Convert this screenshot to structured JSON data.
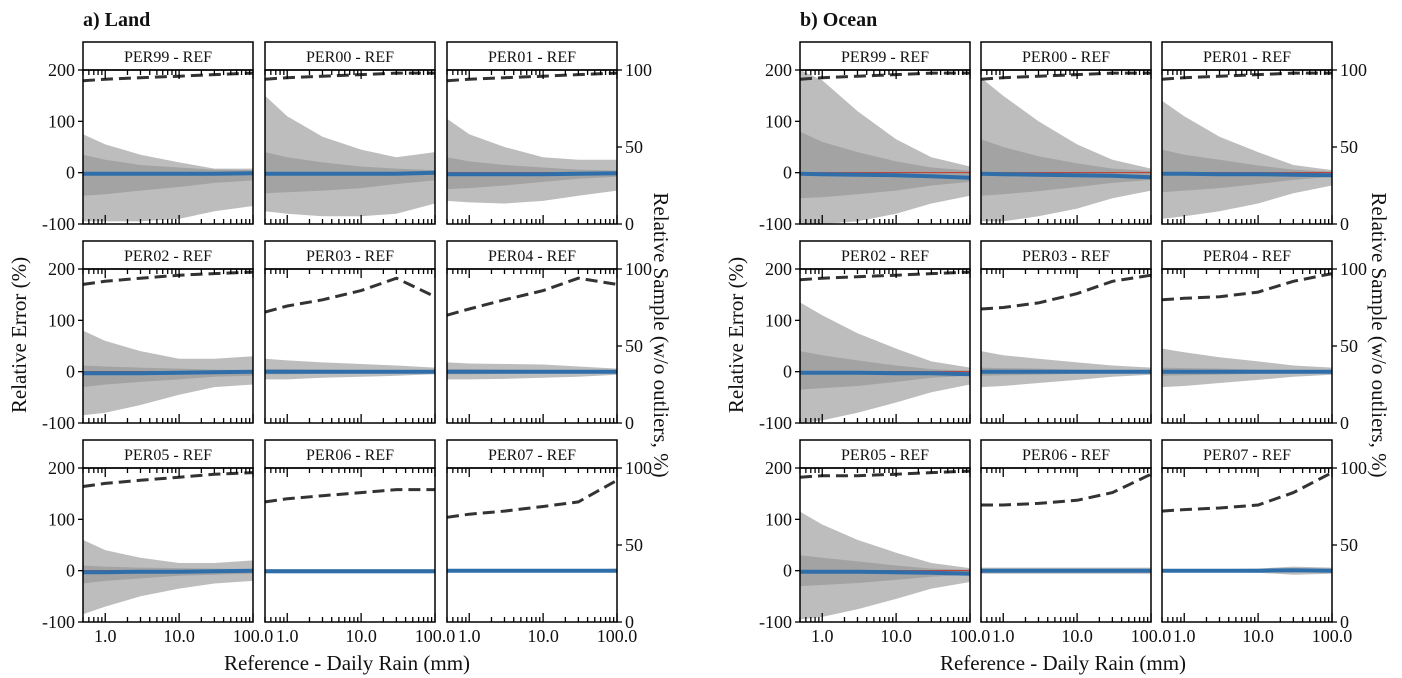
{
  "figure": {
    "xlabel": "Reference - Daily Rain (mm)",
    "ylabel_left": "Relative Error (%)",
    "ylabel_right": "Relative Sample (w/o outliers, %)",
    "colors": {
      "outer_band": "#bdbdbd",
      "inner_band": "#a3a3a3",
      "median_bar": "#2f6ea8",
      "mean_line": "#c0392b",
      "dashed_line": "#333333",
      "frame": "#000000"
    }
  },
  "chart_data": [
    {
      "type": "area",
      "title": "a) Land",
      "xscale": "log",
      "xlim": [
        0.5,
        100
      ],
      "ylim": [
        -100,
        200
      ],
      "y2lim": [
        0,
        100
      ],
      "xticks": [
        "1.0",
        "10.0",
        "100.0"
      ],
      "yticks": [
        "200",
        "100",
        "0",
        "-100"
      ],
      "y2ticks": [
        "100",
        "50",
        "0"
      ],
      "x": [
        0.5,
        1,
        3,
        10,
        30,
        100
      ],
      "panels": [
        {
          "title": "PER99 - REF",
          "outer_upper": [
            75,
            55,
            35,
            20,
            8,
            8
          ],
          "outer_lower": [
            -95,
            -95,
            -95,
            -90,
            -75,
            -65
          ],
          "inner_upper": [
            35,
            25,
            15,
            10,
            6,
            5
          ],
          "inner_lower": [
            -45,
            -42,
            -35,
            -28,
            -20,
            -15
          ],
          "median": [
            -2,
            -2,
            -2,
            -2,
            -2,
            -1
          ],
          "sample": [
            93,
            94,
            95,
            96,
            97,
            98
          ]
        },
        {
          "title": "PER00 - REF",
          "outer_upper": [
            150,
            110,
            70,
            45,
            30,
            40
          ],
          "outer_lower": [
            -75,
            -80,
            -85,
            -85,
            -80,
            -60
          ],
          "inner_upper": [
            40,
            30,
            20,
            12,
            8,
            5
          ],
          "inner_lower": [
            -40,
            -38,
            -35,
            -30,
            -22,
            -15
          ],
          "median": [
            -2,
            -2,
            -2,
            -2,
            -2,
            0
          ],
          "sample": [
            94,
            95,
            96,
            97,
            98,
            98
          ]
        },
        {
          "title": "PER01 - REF",
          "outer_upper": [
            105,
            75,
            50,
            30,
            25,
            25
          ],
          "outer_lower": [
            -55,
            -58,
            -60,
            -55,
            -45,
            -35
          ],
          "inner_upper": [
            30,
            22,
            15,
            10,
            6,
            4
          ],
          "inner_lower": [
            -32,
            -30,
            -25,
            -18,
            -12,
            -8
          ],
          "median": [
            -3,
            -3,
            -3,
            -3,
            -2,
            -1
          ],
          "sample": [
            93,
            94,
            95,
            96,
            97,
            98
          ]
        },
        {
          "title": "PER02 - REF",
          "outer_upper": [
            80,
            60,
            40,
            25,
            25,
            30
          ],
          "outer_lower": [
            -85,
            -80,
            -65,
            -45,
            -30,
            -25
          ],
          "inner_upper": [
            12,
            10,
            8,
            6,
            4,
            3
          ],
          "inner_lower": [
            -30,
            -25,
            -20,
            -15,
            -10,
            -8
          ],
          "median": [
            -3,
            -3,
            -3,
            -2,
            -1,
            0
          ],
          "sample": [
            90,
            92,
            94,
            96,
            97,
            98
          ]
        },
        {
          "title": "PER03 - REF",
          "outer_upper": [
            25,
            22,
            18,
            15,
            12,
            8
          ],
          "outer_lower": [
            -15,
            -15,
            -12,
            -10,
            -8,
            -5
          ],
          "inner_upper": [
            5,
            5,
            4,
            3,
            2,
            2
          ],
          "inner_lower": [
            -5,
            -5,
            -4,
            -3,
            -2,
            -2
          ],
          "median": [
            0,
            0,
            0,
            0,
            0,
            0
          ],
          "sample": [
            72,
            76,
            80,
            86,
            94,
            82
          ]
        },
        {
          "title": "PER04 - REF",
          "outer_upper": [
            18,
            16,
            15,
            14,
            10,
            6
          ],
          "outer_lower": [
            -15,
            -15,
            -14,
            -12,
            -10,
            -6
          ],
          "inner_upper": [
            5,
            5,
            4,
            3,
            3,
            2
          ],
          "inner_lower": [
            -5,
            -5,
            -4,
            -3,
            -3,
            -2
          ],
          "median": [
            0,
            0,
            0,
            0,
            0,
            0
          ],
          "sample": [
            70,
            74,
            80,
            86,
            94,
            90
          ]
        },
        {
          "title": "PER05 - REF",
          "outer_upper": [
            60,
            40,
            25,
            15,
            15,
            20
          ],
          "outer_lower": [
            -85,
            -70,
            -50,
            -35,
            -25,
            -20
          ],
          "inner_upper": [
            10,
            8,
            6,
            5,
            4,
            3
          ],
          "inner_lower": [
            -25,
            -20,
            -15,
            -10,
            -8,
            -6
          ],
          "median": [
            -3,
            -3,
            -2,
            -2,
            -1,
            0
          ],
          "sample": [
            88,
            90,
            92,
            94,
            96,
            97
          ]
        },
        {
          "title": "PER06 - REF",
          "outer_upper": [
            3,
            3,
            3,
            3,
            3,
            3
          ],
          "outer_lower": [
            -5,
            -5,
            -5,
            -5,
            -5,
            -5
          ],
          "inner_upper": [
            1,
            1,
            1,
            1,
            1,
            1
          ],
          "inner_lower": [
            -2,
            -2,
            -2,
            -2,
            -2,
            -2
          ],
          "median": [
            -1,
            -1,
            -1,
            -1,
            -1,
            -1
          ],
          "sample": [
            78,
            80,
            82,
            84,
            86,
            86
          ]
        },
        {
          "title": "PER07 - REF",
          "outer_upper": [
            1,
            1,
            1,
            1,
            2,
            4
          ],
          "outer_lower": [
            -1,
            -1,
            -1,
            -1,
            -2,
            -3
          ],
          "inner_upper": [
            0.5,
            0.5,
            0.5,
            0.5,
            1,
            1
          ],
          "inner_lower": [
            -0.5,
            -0.5,
            -0.5,
            -0.5,
            -1,
            -1
          ],
          "median": [
            0,
            0,
            0,
            0,
            0,
            0
          ],
          "sample": [
            68,
            70,
            72,
            75,
            78,
            92
          ]
        }
      ]
    },
    {
      "type": "area",
      "title": "b) Ocean",
      "xscale": "log",
      "xlim": [
        0.5,
        100
      ],
      "ylim": [
        -100,
        200
      ],
      "y2lim": [
        0,
        100
      ],
      "xticks": [
        "1.0",
        "10.0",
        "100.0"
      ],
      "yticks": [
        "200",
        "100",
        "0",
        "-100"
      ],
      "y2ticks": [
        "100",
        "50",
        "0"
      ],
      "x": [
        0.5,
        1,
        3,
        10,
        30,
        100
      ],
      "panels": [
        {
          "title": "PER99 - REF",
          "outer_upper": [
            220,
            180,
            120,
            65,
            30,
            12
          ],
          "outer_lower": [
            -100,
            -100,
            -95,
            -80,
            -60,
            -45
          ],
          "inner_upper": [
            80,
            60,
            40,
            22,
            10,
            4
          ],
          "inner_lower": [
            -50,
            -48,
            -42,
            -35,
            -25,
            -18
          ],
          "median": [
            -2,
            -3,
            -4,
            -5,
            -7,
            -10
          ],
          "sample": [
            94,
            95,
            96,
            97,
            98,
            98
          ]
        },
        {
          "title": "PER00 - REF",
          "outer_upper": [
            185,
            150,
            100,
            55,
            25,
            8
          ],
          "outer_lower": [
            -95,
            -95,
            -85,
            -70,
            -50,
            -35
          ],
          "inner_upper": [
            65,
            50,
            32,
            18,
            8,
            3
          ],
          "inner_lower": [
            -45,
            -42,
            -36,
            -28,
            -20,
            -14
          ],
          "median": [
            -2,
            -3,
            -4,
            -5,
            -6,
            -9
          ],
          "sample": [
            94,
            95,
            96,
            97,
            98,
            98
          ]
        },
        {
          "title": "PER01 - REF",
          "outer_upper": [
            140,
            110,
            70,
            40,
            15,
            5
          ],
          "outer_lower": [
            -90,
            -85,
            -75,
            -60,
            -40,
            -25
          ],
          "inner_upper": [
            45,
            35,
            25,
            14,
            6,
            2
          ],
          "inner_lower": [
            -38,
            -35,
            -30,
            -22,
            -14,
            -8
          ],
          "median": [
            -2,
            -2,
            -3,
            -3,
            -4,
            -5
          ],
          "sample": [
            94,
            95,
            96,
            97,
            98,
            98
          ]
        },
        {
          "title": "PER02 - REF",
          "outer_upper": [
            135,
            110,
            75,
            45,
            20,
            8
          ],
          "outer_lower": [
            -100,
            -95,
            -80,
            -60,
            -40,
            -25
          ],
          "inner_upper": [
            40,
            32,
            22,
            12,
            5,
            2
          ],
          "inner_lower": [
            -35,
            -32,
            -28,
            -20,
            -12,
            -8
          ],
          "median": [
            -2,
            -2,
            -2,
            -3,
            -3,
            -5
          ],
          "sample": [
            93,
            94,
            95,
            96,
            97,
            98
          ]
        },
        {
          "title": "PER03 - REF",
          "outer_upper": [
            40,
            32,
            25,
            18,
            12,
            8
          ],
          "outer_lower": [
            -30,
            -28,
            -22,
            -16,
            -10,
            -6
          ],
          "inner_upper": [
            8,
            7,
            6,
            4,
            3,
            2
          ],
          "inner_lower": [
            -8,
            -7,
            -6,
            -4,
            -3,
            -2
          ],
          "median": [
            0,
            0,
            0,
            0,
            0,
            0
          ],
          "sample": [
            74,
            75,
            78,
            84,
            92,
            96
          ]
        },
        {
          "title": "PER04 - REF",
          "outer_upper": [
            45,
            38,
            28,
            20,
            12,
            8
          ],
          "outer_lower": [
            -30,
            -28,
            -22,
            -16,
            -10,
            -6
          ],
          "inner_upper": [
            8,
            7,
            6,
            4,
            3,
            2
          ],
          "inner_lower": [
            -8,
            -7,
            -6,
            -4,
            -3,
            -2
          ],
          "median": [
            0,
            0,
            0,
            0,
            0,
            0
          ],
          "sample": [
            80,
            81,
            82,
            85,
            92,
            97
          ]
        },
        {
          "title": "PER05 - REF",
          "outer_upper": [
            115,
            90,
            60,
            35,
            15,
            5
          ],
          "outer_lower": [
            -95,
            -90,
            -75,
            -55,
            -35,
            -22
          ],
          "inner_upper": [
            30,
            25,
            18,
            10,
            4,
            2
          ],
          "inner_lower": [
            -30,
            -28,
            -24,
            -18,
            -12,
            -8
          ],
          "median": [
            -2,
            -2,
            -2,
            -3,
            -4,
            -6
          ],
          "sample": [
            94,
            95,
            95,
            96,
            97,
            98
          ]
        },
        {
          "title": "PER06 - REF",
          "outer_upper": [
            6,
            6,
            6,
            6,
            6,
            6
          ],
          "outer_lower": [
            -6,
            -6,
            -6,
            -6,
            -6,
            -6
          ],
          "inner_upper": [
            2,
            2,
            2,
            2,
            2,
            2
          ],
          "inner_lower": [
            -2,
            -2,
            -2,
            -2,
            -2,
            -2
          ],
          "median": [
            0,
            0,
            0,
            0,
            0,
            0
          ],
          "sample": [
            76,
            76,
            77,
            79,
            84,
            96
          ]
        },
        {
          "title": "PER07 - REF",
          "outer_upper": [
            3,
            3,
            3,
            4,
            8,
            6
          ],
          "outer_lower": [
            -3,
            -3,
            -3,
            -4,
            -8,
            -6
          ],
          "inner_upper": [
            1,
            1,
            1,
            1,
            3,
            2
          ],
          "inner_lower": [
            -1,
            -1,
            -1,
            -1,
            -3,
            -2
          ],
          "median": [
            0,
            0,
            0,
            0,
            1,
            0
          ],
          "sample": [
            72,
            73,
            74,
            76,
            84,
            97
          ]
        }
      ]
    }
  ]
}
